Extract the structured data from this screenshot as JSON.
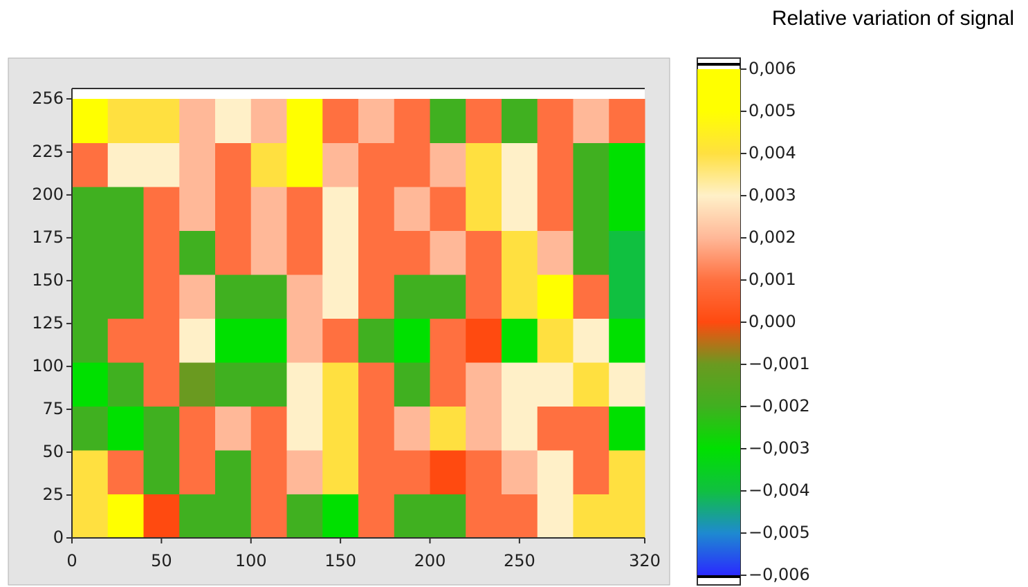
{
  "chart_data": {
    "type": "heatmap",
    "colorbar_label": "Relative variation of signal",
    "x": [
      10,
      30,
      50,
      70,
      90,
      110,
      130,
      150,
      170,
      190,
      210,
      230,
      250,
      270,
      290,
      310
    ],
    "y": [
      12.8,
      38.4,
      64,
      89.6,
      115.2,
      140.8,
      166.4,
      192,
      217.6,
      243.2
    ],
    "z": [
      [
        0.004,
        0.005,
        0.0,
        -0.002,
        -0.002,
        0.001,
        -0.002,
        -0.003,
        0.001,
        -0.002,
        -0.002,
        0.001,
        0.001,
        0.003,
        0.004,
        0.004
      ],
      [
        0.004,
        0.001,
        -0.002,
        0.001,
        -0.002,
        0.001,
        0.002,
        0.004,
        0.001,
        0.001,
        0.0,
        0.001,
        0.002,
        0.003,
        0.001,
        0.004
      ],
      [
        -0.002,
        -0.003,
        -0.002,
        0.001,
        0.002,
        0.001,
        0.003,
        0.004,
        0.001,
        0.002,
        0.004,
        0.002,
        0.003,
        0.001,
        0.001,
        -0.003
      ],
      [
        -0.003,
        -0.002,
        0.001,
        -0.001,
        -0.002,
        -0.002,
        0.003,
        0.004,
        0.001,
        -0.002,
        0.001,
        0.002,
        0.003,
        0.003,
        0.004,
        0.003
      ],
      [
        -0.002,
        0.001,
        0.001,
        0.003,
        -0.003,
        -0.003,
        0.002,
        0.001,
        -0.002,
        -0.003,
        0.001,
        0.0,
        -0.003,
        0.004,
        0.003,
        -0.003
      ],
      [
        -0.002,
        -0.002,
        0.001,
        0.002,
        -0.002,
        -0.002,
        0.002,
        0.003,
        0.001,
        -0.002,
        -0.002,
        0.001,
        0.004,
        0.005,
        0.001,
        -0.004
      ],
      [
        -0.002,
        -0.002,
        0.001,
        -0.002,
        0.001,
        0.002,
        0.001,
        0.003,
        0.001,
        0.001,
        0.002,
        0.001,
        0.004,
        0.002,
        -0.002,
        -0.004
      ],
      [
        -0.002,
        -0.002,
        0.001,
        0.002,
        0.001,
        0.002,
        0.001,
        0.003,
        0.001,
        0.002,
        0.001,
        0.004,
        0.003,
        0.001,
        -0.002,
        -0.003
      ],
      [
        0.001,
        0.003,
        0.003,
        0.002,
        0.001,
        0.004,
        0.005,
        0.002,
        0.001,
        0.001,
        0.002,
        0.004,
        0.003,
        0.001,
        -0.002,
        -0.003
      ],
      [
        0.005,
        0.004,
        0.004,
        0.002,
        0.003,
        0.002,
        0.005,
        0.001,
        0.002,
        0.001,
        -0.002,
        0.001,
        -0.002,
        0.001,
        0.002,
        0.001
      ]
    ],
    "xlim": [
      0,
      320
    ],
    "xticks": [
      0,
      50,
      100,
      150,
      200,
      250,
      320
    ],
    "ylim": [
      0,
      256
    ],
    "yticks": [
      0,
      25,
      50,
      75,
      100,
      125,
      150,
      175,
      200,
      225,
      256
    ],
    "clim": [
      -0.006,
      0.006
    ],
    "colormap": [
      "#2a2aff",
      "#1e8ad0",
      "#10c040",
      "#00e000",
      "#40b020",
      "#6a9a20",
      "#ff4a10",
      "#ff7040",
      "#ffb898",
      "#fff0c8",
      "#ffe040",
      "#ffff00",
      "#ffff00"
    ],
    "cticks": [
      {
        "value": 0.006,
        "label": "0,006"
      },
      {
        "value": 0.005,
        "label": "0,005"
      },
      {
        "value": 0.004,
        "label": "0,004"
      },
      {
        "value": 0.003,
        "label": "0,003"
      },
      {
        "value": 0.002,
        "label": "0,002"
      },
      {
        "value": 0.001,
        "label": "0,001"
      },
      {
        "value": 0,
        "label": "0,000"
      },
      {
        "value": -0.001,
        "label": "−0,001"
      },
      {
        "value": -0.002,
        "label": "−0,002"
      },
      {
        "value": -0.003,
        "label": "−0,003"
      },
      {
        "value": -0.004,
        "label": "−0,004"
      },
      {
        "value": -0.005,
        "label": "−0,005"
      },
      {
        "value": -0.006,
        "label": "−0,006"
      }
    ]
  }
}
